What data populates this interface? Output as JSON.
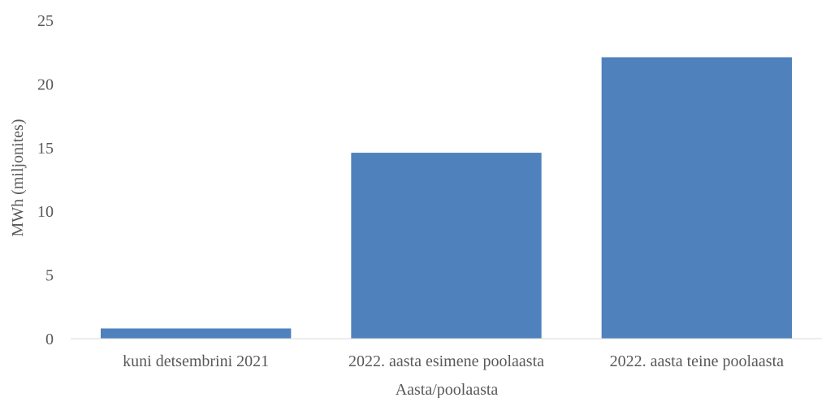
{
  "chart_data": {
    "type": "bar",
    "title": "",
    "xlabel": "Aasta/poolaasta",
    "ylabel": "MWh (miljonites)",
    "categories": [
      "kuni detsembrini 2021",
      "2022. aasta esimene poolaasta",
      "2022. aasta teine poolaasta"
    ],
    "values": [
      0.8,
      14.6,
      22.1
    ],
    "ylim": [
      0,
      25
    ],
    "yticks": [
      0,
      5,
      10,
      15,
      20,
      25
    ],
    "ytick_labels": [
      "0",
      "5",
      "10",
      "15",
      "20",
      "25"
    ],
    "grid": false,
    "legend": "none",
    "colors": {
      "bar": "#4f81bd",
      "axis_line": "#d9d9d9",
      "text": "#595959"
    }
  }
}
